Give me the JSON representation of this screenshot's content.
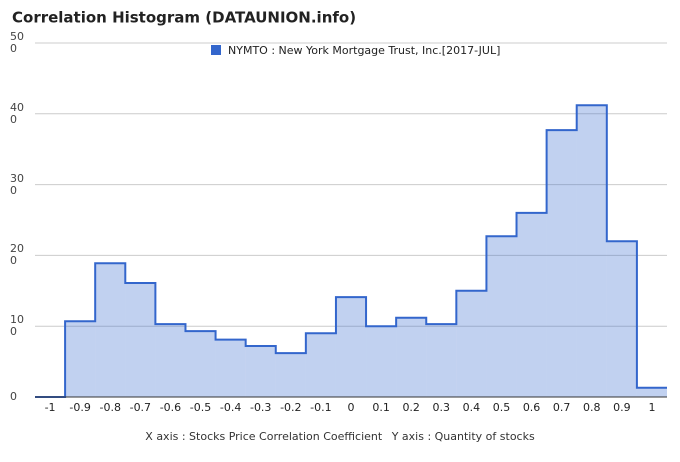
{
  "chart_data": {
    "type": "histogram",
    "title": "Correlation Histogram (DATAUNION.info)",
    "series_name": "NYMTO : New York Mortgage Trust, Inc.[2017-JUL]",
    "color": "#3366cc",
    "bins": [
      -1.05,
      -0.95,
      -0.85,
      -0.75,
      -0.65,
      -0.55,
      -0.45,
      -0.35,
      -0.25,
      -0.15,
      -0.05,
      0.05,
      0.15,
      0.25,
      0.35,
      0.45,
      0.55,
      0.65,
      0.75,
      0.85,
      0.95,
      1.05
    ],
    "values": [
      0,
      107,
      189,
      161,
      103,
      93,
      81,
      72,
      62,
      90,
      141,
      100,
      112,
      103,
      150,
      227,
      260,
      377,
      412,
      220,
      13
    ],
    "xlim": [
      -1.05,
      1.05
    ],
    "xticks": [
      -1,
      -0.9,
      -0.8,
      -0.7,
      -0.6,
      -0.5,
      -0.4,
      -0.3,
      -0.2,
      -0.1,
      0,
      0.1,
      0.2,
      0.3,
      0.4,
      0.5,
      0.6,
      0.7,
      0.8,
      0.9,
      1
    ],
    "ylim": [
      0,
      500
    ],
    "yticks": [
      0,
      100,
      200,
      300,
      400,
      500
    ],
    "grid": true,
    "x_label": "X axis : Stocks Price Correlation Coefficient",
    "y_label": "Y axis : Quantity of stocks"
  }
}
